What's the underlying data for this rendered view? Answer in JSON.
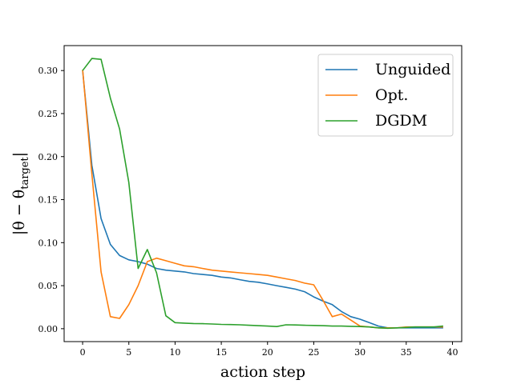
{
  "chart_data": {
    "type": "line",
    "xlabel": "action step",
    "ylabel_main": "|θ − θ",
    "ylabel_sub": "target",
    "ylabel_end": "|",
    "xlim": [
      -2,
      41
    ],
    "ylim": [
      -0.015,
      0.329
    ],
    "xticks": [
      0,
      5,
      10,
      15,
      20,
      25,
      30,
      35,
      40
    ],
    "yticks": [
      0.0,
      0.05,
      0.1,
      0.15,
      0.2,
      0.25,
      0.3
    ],
    "xtick_labels": [
      "0",
      "5",
      "10",
      "15",
      "20",
      "25",
      "30",
      "35",
      "40"
    ],
    "ytick_labels": [
      "0.00",
      "0.05",
      "0.10",
      "0.15",
      "0.20",
      "0.25",
      "0.30"
    ],
    "grid": false,
    "legend_position": "top-right",
    "series": [
      {
        "name": "Unguided",
        "color": "#1f77b4",
        "x": [
          0,
          1,
          2,
          3,
          4,
          5,
          6,
          7,
          8,
          9,
          10,
          11,
          12,
          13,
          14,
          15,
          16,
          17,
          18,
          19,
          20,
          21,
          22,
          23,
          24,
          25,
          26,
          27,
          28,
          29,
          30,
          31,
          32,
          33,
          34,
          35,
          36,
          37,
          38,
          39
        ],
        "y": [
          0.3,
          0.19,
          0.128,
          0.098,
          0.085,
          0.08,
          0.078,
          0.075,
          0.07,
          0.068,
          0.067,
          0.066,
          0.064,
          0.063,
          0.062,
          0.06,
          0.059,
          0.057,
          0.055,
          0.054,
          0.052,
          0.05,
          0.048,
          0.046,
          0.043,
          0.037,
          0.032,
          0.028,
          0.02,
          0.014,
          0.011,
          0.007,
          0.003,
          0.001,
          0.001,
          0.001,
          0.001,
          0.001,
          0.001,
          0.001
        ]
      },
      {
        "name": "Opt.",
        "color": "#ff7f0e",
        "x": [
          0,
          1,
          2,
          3,
          4,
          5,
          6,
          7,
          8,
          9,
          10,
          11,
          12,
          13,
          14,
          15,
          16,
          17,
          18,
          19,
          20,
          21,
          22,
          23,
          24,
          25,
          26,
          27,
          28,
          29,
          30,
          31,
          32,
          33,
          34,
          35,
          36,
          37,
          38,
          39
        ],
        "y": [
          0.301,
          0.18,
          0.066,
          0.014,
          0.012,
          0.028,
          0.05,
          0.078,
          0.082,
          0.079,
          0.076,
          0.073,
          0.072,
          0.07,
          0.068,
          0.067,
          0.066,
          0.065,
          0.064,
          0.063,
          0.062,
          0.06,
          0.058,
          0.056,
          0.053,
          0.051,
          0.033,
          0.014,
          0.017,
          0.01,
          0.003,
          0.002,
          0.001,
          0.001,
          0.001,
          0.002,
          0.002,
          0.002,
          0.002,
          0.002
        ]
      },
      {
        "name": "DGDM",
        "color": "#2ca02c",
        "x": [
          0,
          1,
          2,
          3,
          4,
          5,
          6,
          7,
          8,
          9,
          10,
          11,
          12,
          13,
          14,
          15,
          16,
          17,
          18,
          19,
          20,
          21,
          22,
          23,
          24,
          25,
          26,
          27,
          28,
          29,
          30,
          31,
          32,
          33,
          34,
          35,
          36,
          37,
          38,
          39
        ],
        "y": [
          0.3,
          0.314,
          0.313,
          0.268,
          0.232,
          0.17,
          0.07,
          0.092,
          0.065,
          0.015,
          0.007,
          0.0065,
          0.006,
          0.0058,
          0.0055,
          0.005,
          0.0048,
          0.0045,
          0.004,
          0.0035,
          0.003,
          0.0025,
          0.0045,
          0.0043,
          0.004,
          0.0038,
          0.0035,
          0.003,
          0.003,
          0.0028,
          0.0025,
          0.002,
          0.001,
          0.0005,
          0.001,
          0.0015,
          0.002,
          0.002,
          0.002,
          0.003
        ]
      }
    ]
  }
}
